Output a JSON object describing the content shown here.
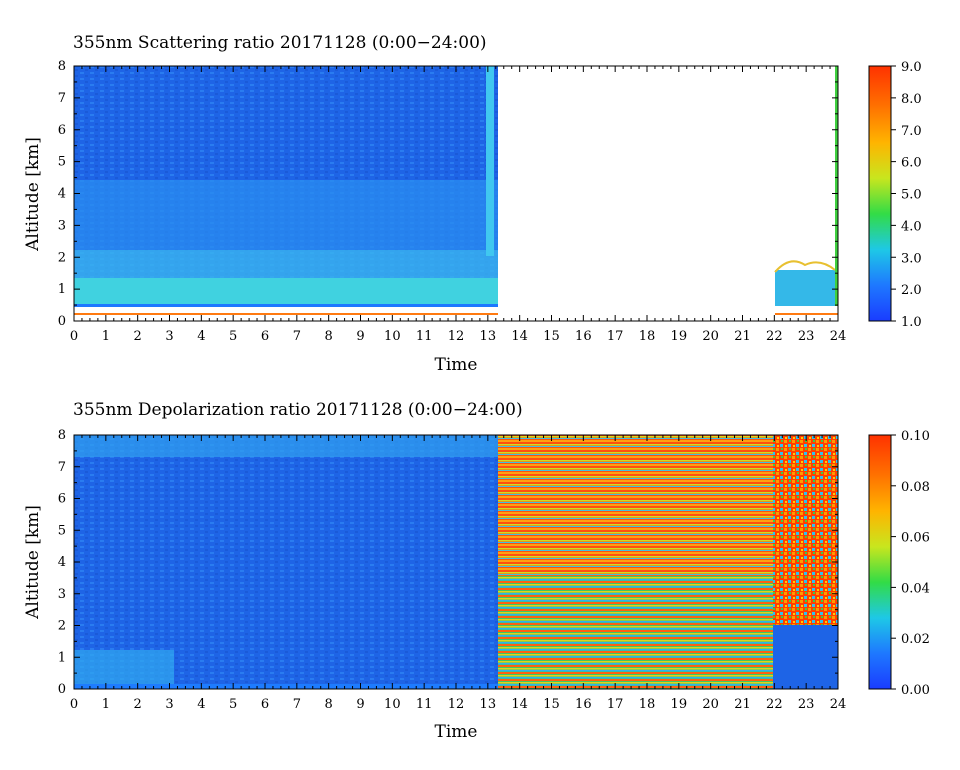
{
  "chart_data": [
    {
      "type": "heatmap",
      "title": "355nm Scattering ratio  20171128 (0:00−24:00)",
      "xlabel": "Time",
      "ylabel": "Altitude [km]",
      "xlim": [
        0,
        24
      ],
      "ylim": [
        0,
        8
      ],
      "x_ticks": [
        "0",
        "1",
        "2",
        "3",
        "4",
        "5",
        "6",
        "7",
        "8",
        "9",
        "10",
        "11",
        "12",
        "13",
        "14",
        "15",
        "16",
        "17",
        "18",
        "19",
        "20",
        "21",
        "22",
        "23",
        "24"
      ],
      "y_ticks": [
        "0",
        "1",
        "2",
        "3",
        "4",
        "5",
        "6",
        "7",
        "8"
      ],
      "colorbar": {
        "min": 1.0,
        "max": 9.0,
        "ticks": [
          "1.0",
          "2.0",
          "3.0",
          "4.0",
          "5.0",
          "6.0",
          "7.0",
          "8.0",
          "9.0"
        ]
      },
      "regions": [
        {
          "x": [
            0,
            13.2
          ],
          "y": [
            0.5,
            8
          ],
          "value": 1.6
        },
        {
          "x": [
            0,
            13.2
          ],
          "y": [
            0.5,
            1.4
          ],
          "value": 2.7
        },
        {
          "x": [
            0,
            13.2
          ],
          "y": [
            1.4,
            3.5
          ],
          "value": 2.1
        },
        {
          "x": [
            13.2,
            21.9
          ],
          "y": [
            0,
            8
          ],
          "value": null
        },
        {
          "x": [
            21.9,
            24
          ],
          "y": [
            0.5,
            1.6
          ],
          "value": 2.6
        },
        {
          "x": [
            21.9,
            24
          ],
          "y": [
            1.6,
            8
          ],
          "value": null
        }
      ]
    },
    {
      "type": "heatmap",
      "title": "355nm Depolarization ratio  20171128 (0:00−24:00)",
      "xlabel": "Time",
      "ylabel": "Altitude [km]",
      "xlim": [
        0,
        24
      ],
      "ylim": [
        0,
        8
      ],
      "x_ticks": [
        "0",
        "1",
        "2",
        "3",
        "4",
        "5",
        "6",
        "7",
        "8",
        "9",
        "10",
        "11",
        "12",
        "13",
        "14",
        "15",
        "16",
        "17",
        "18",
        "19",
        "20",
        "21",
        "22",
        "23",
        "24"
      ],
      "y_ticks": [
        "0",
        "1",
        "2",
        "3",
        "4",
        "5",
        "6",
        "7",
        "8"
      ],
      "colorbar": {
        "min": 0.0,
        "max": 0.1,
        "ticks": [
          "0.00",
          "0.02",
          "0.04",
          "0.06",
          "0.08",
          "0.10"
        ]
      },
      "regions": [
        {
          "x": [
            0,
            13.2
          ],
          "y": [
            0,
            8
          ],
          "value": 0.01
        },
        {
          "x": [
            0,
            3.2
          ],
          "y": [
            0.1,
            1.1
          ],
          "value": 0.015
        },
        {
          "x": [
            13.2,
            21.9
          ],
          "y": [
            0,
            8
          ],
          "value": 0.07
        },
        {
          "x": [
            21.9,
            24
          ],
          "y": [
            0,
            1.6
          ],
          "value": 0.01
        },
        {
          "x": [
            21.9,
            24
          ],
          "y": [
            1.6,
            8
          ],
          "value": 0.09
        }
      ]
    }
  ]
}
